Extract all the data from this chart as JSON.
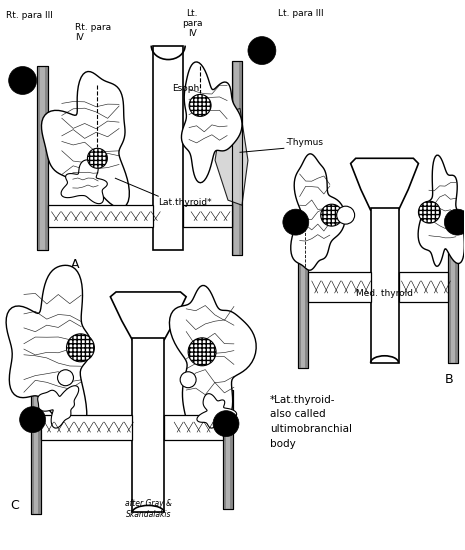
{
  "fig_width": 4.65,
  "fig_height": 5.5,
  "dpi": 100,
  "bg_color": "#ffffff",
  "labels": {
    "rt_para_III": "Rt. para III",
    "rt_para_IV": "Rt. para\nIV",
    "lt_para_IV": "Lt.\npara\nIV",
    "lt_para_III": "Lt. para III",
    "esoph": "Esoph.",
    "thymus": "-Thymus",
    "lat_thyroid": "Lat.thyroid*",
    "med_thyroid": "Med. thyroid",
    "panel_A": "A",
    "panel_B": "B",
    "panel_C": "C",
    "footnote": "*Lat.thyroid-\nalso called\nultimobranchial\nbody",
    "credit": "after Gray &\nSkandalakis"
  }
}
